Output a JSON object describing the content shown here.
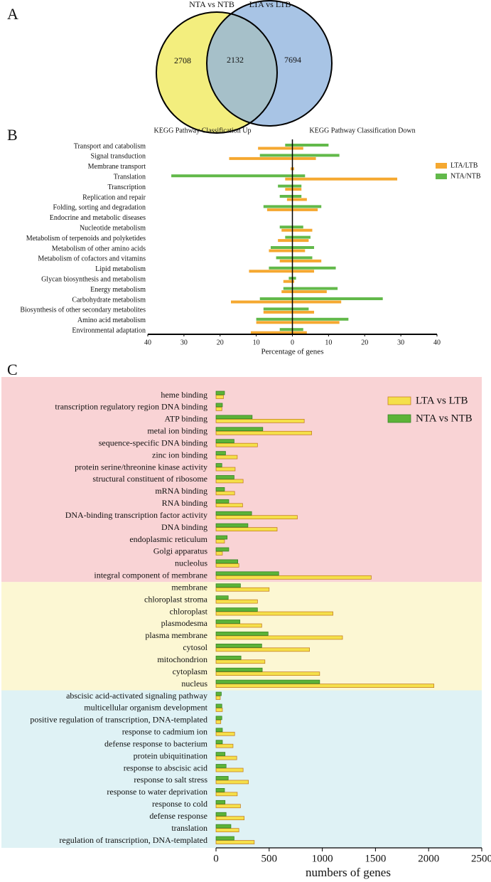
{
  "chart_data": [
    {
      "type": "venn",
      "panel": "A",
      "sets": [
        {
          "name": "NTA vs NTB",
          "color": "#f3ee7e"
        },
        {
          "name": "LTA vs LTB",
          "color": "#8fb3de"
        }
      ],
      "values": [
        2708,
        2132,
        7694
      ]
    },
    {
      "type": "diverging",
      "panel": "B",
      "title_up": "KEGG Pathway Classification Up",
      "title_down": "KEGG Pathway Classification Down",
      "xlabel": "Percentage of genes",
      "categories": [
        "Transport and catabolism",
        "Signal transduction",
        "Membrane transport",
        "Translation",
        "Transcription",
        "Replication and repair",
        "Folding, sorting and degradation",
        "Endocrine and metabolic diseases",
        "Nucleotide metabolism",
        "Metabolism of terpenoids and polyketides",
        "Metabolism of other amino acids",
        "Metabolism of cofactors and vitamins",
        "Lipid metabolism",
        "Glycan biosynthesis and metabolism",
        "Energy metabolism",
        "Carbohydrate metabolism",
        "Biosynthesis of other secondary metabolites",
        "Amino acid metabolism",
        "Environmental adaptation"
      ],
      "series": [
        {
          "name": "LTA/LTB",
          "color": "#f5a830",
          "up": [
            -9.5,
            -17.5,
            -0.5,
            -2,
            -2,
            -1.5,
            -7,
            0,
            -3,
            -4,
            -6.5,
            -3.5,
            -12,
            -2.5,
            -3,
            -17,
            -8,
            -10,
            -11.5
          ],
          "down": [
            3,
            6.5,
            0.5,
            29,
            2.5,
            4,
            7,
            0,
            5.5,
            4.5,
            3.5,
            8,
            6,
            0.5,
            9.5,
            13.5,
            6,
            13,
            4
          ]
        },
        {
          "name": "NTA/NTB",
          "color": "#62b94a",
          "up": [
            -2,
            -9,
            0,
            -33.5,
            -4,
            -3.5,
            -8,
            0,
            -3.5,
            -2,
            -6,
            -4.5,
            -6.5,
            -1,
            -2.5,
            -9,
            -8,
            -10,
            -3.5
          ],
          "down": [
            10,
            13,
            0,
            3.5,
            2.5,
            2.5,
            8,
            0,
            3,
            5,
            6,
            5.5,
            12,
            1,
            12.5,
            25,
            4.5,
            15.5,
            3
          ]
        }
      ],
      "xlim": [
        -40,
        40
      ],
      "xticks": [
        {
          "value": -40,
          "label": "40"
        },
        {
          "value": -30,
          "label": "30"
        },
        {
          "value": -20,
          "label": "20"
        },
        {
          "value": -10,
          "label": "10"
        },
        0,
        10,
        20,
        30,
        40
      ]
    },
    {
      "type": "bar",
      "panel": "C",
      "xlabel": "numbers of genes",
      "categories": [
        "heme binding",
        "transcription regulatory region DNA binding",
        "ATP binding",
        "metal ion binding",
        "sequence-specific DNA binding",
        "zinc ion binding",
        "protein serine/threonine kinase activity",
        "structural constituent of ribosome",
        "mRNA binding",
        "RNA binding",
        "DNA-binding transcription factor activity",
        "DNA binding",
        "endoplasmic reticulum",
        "Golgi apparatus",
        "nucleolus",
        "integral component of membrane",
        "membrane",
        "chloroplast stroma",
        "chloroplast",
        "plasmodesma",
        "plasma membrane",
        "cytosol",
        "mitochondrion",
        "cytoplasm",
        "nucleus",
        "abscisic acid-activated signaling pathway",
        "multicellular organism development",
        "positive regulation of transcription, DNA-templated",
        "response to cadmium ion",
        "defense response to bacterium",
        "protein ubiquitination",
        "response to abscisic acid",
        "response to salt stress",
        "response to water deprivation",
        "response to cold",
        "defense response",
        "translation",
        "regulation of transcription, DNA-templated"
      ],
      "series": [
        {
          "name": "LTA vs LTB",
          "color": "#f5e04a",
          "values": [
            70,
            55,
            830,
            900,
            390,
            200,
            180,
            255,
            175,
            250,
            765,
            575,
            80,
            60,
            215,
            1460,
            500,
            390,
            1100,
            430,
            1190,
            880,
            460,
            975,
            2050,
            40,
            60,
            45,
            175,
            160,
            195,
            255,
            305,
            200,
            230,
            265,
            215,
            360
          ]
        },
        {
          "name": "NTA vs NTB",
          "color": "#5cb338",
          "values": [
            80,
            60,
            340,
            440,
            170,
            90,
            55,
            170,
            80,
            120,
            335,
            300,
            105,
            120,
            205,
            590,
            230,
            115,
            390,
            225,
            490,
            430,
            235,
            435,
            975,
            50,
            55,
            55,
            60,
            60,
            85,
            95,
            115,
            80,
            85,
            95,
            140,
            170
          ]
        }
      ],
      "xlim": [
        0,
        2500
      ],
      "xticks": [
        0,
        500,
        1000,
        1500,
        2000,
        2500
      ]
    }
  ]
}
